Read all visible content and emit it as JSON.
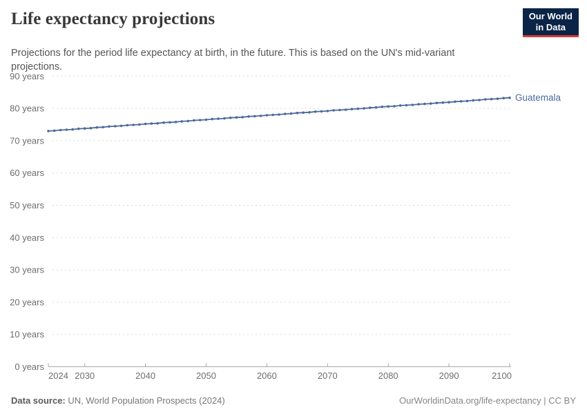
{
  "header": {
    "title": "Life expectancy projections",
    "subtitle": "Projections for the period life expectancy at birth, in the future. This is based on the UN's mid-variant projections."
  },
  "logo": {
    "line1": "Our World",
    "line2": "in Data",
    "bg_color": "#0a2447",
    "accent_color": "#d93b3b"
  },
  "chart_data": {
    "type": "line",
    "title": "Life expectancy projections",
    "xlabel": "",
    "ylabel": "",
    "xlim": [
      2024,
      2100
    ],
    "ylim": [
      0,
      90
    ],
    "grid": true,
    "legend_position": "end-of-line-label",
    "x_ticks": [
      2024,
      2030,
      2040,
      2050,
      2060,
      2070,
      2080,
      2090,
      2100
    ],
    "y_ticks": [
      0,
      10,
      20,
      30,
      40,
      50,
      60,
      70,
      80,
      90
    ],
    "y_tick_suffix": " years",
    "series": [
      {
        "name": "Guatemala",
        "color": "#4c6a9c",
        "x": [
          2024,
          2025,
          2026,
          2027,
          2028,
          2029,
          2030,
          2031,
          2032,
          2033,
          2034,
          2035,
          2036,
          2037,
          2038,
          2039,
          2040,
          2041,
          2042,
          2043,
          2044,
          2045,
          2046,
          2047,
          2048,
          2049,
          2050,
          2051,
          2052,
          2053,
          2054,
          2055,
          2056,
          2057,
          2058,
          2059,
          2060,
          2061,
          2062,
          2063,
          2064,
          2065,
          2066,
          2067,
          2068,
          2069,
          2070,
          2071,
          2072,
          2073,
          2074,
          2075,
          2076,
          2077,
          2078,
          2079,
          2080,
          2081,
          2082,
          2083,
          2084,
          2085,
          2086,
          2087,
          2088,
          2089,
          2090,
          2091,
          2092,
          2093,
          2094,
          2095,
          2096,
          2097,
          2098,
          2099,
          2100
        ],
        "values": [
          73.0,
          73.1,
          73.3,
          73.4,
          73.5,
          73.7,
          73.8,
          73.9,
          74.1,
          74.2,
          74.4,
          74.5,
          74.6,
          74.8,
          74.9,
          75.0,
          75.2,
          75.3,
          75.4,
          75.6,
          75.7,
          75.8,
          76.0,
          76.1,
          76.3,
          76.4,
          76.5,
          76.7,
          76.8,
          76.9,
          77.1,
          77.2,
          77.3,
          77.5,
          77.6,
          77.7,
          77.9,
          78.0,
          78.1,
          78.3,
          78.4,
          78.6,
          78.7,
          78.8,
          79.0,
          79.1,
          79.2,
          79.4,
          79.5,
          79.6,
          79.8,
          79.9,
          80.0,
          80.2,
          80.3,
          80.5,
          80.6,
          80.7,
          80.9,
          81.0,
          81.1,
          81.3,
          81.4,
          81.5,
          81.7,
          81.8,
          81.9,
          82.1,
          82.2,
          82.3,
          82.5,
          82.6,
          82.8,
          82.9,
          83.0,
          83.2,
          83.3
        ]
      }
    ]
  },
  "footer": {
    "source_label": "Data source:",
    "source_text": " UN, World Population Prospects (2024)",
    "right_text": "OurWorldinData.org/life-expectancy | CC BY"
  }
}
